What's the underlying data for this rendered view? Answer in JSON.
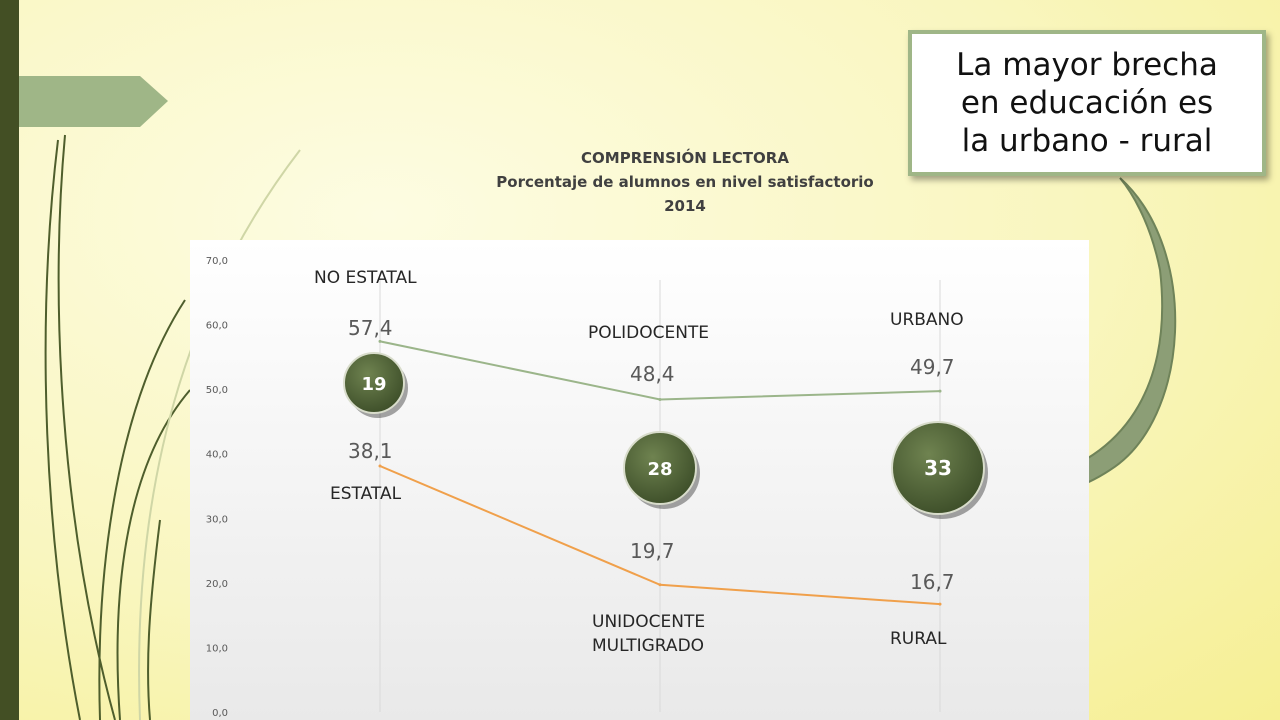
{
  "slide": {
    "callout_text": "La mayor brecha\nen educación es\nla urbano - rural"
  },
  "chart_data": {
    "type": "line",
    "title": "COMPRENSIÓN LECTORA",
    "subtitle": "Porcentaje de alumnos en nivel satisfactorio",
    "year": "2014",
    "categories": [
      "",
      "",
      ""
    ],
    "ylim": [
      0,
      70
    ],
    "y_ticks": [
      "0,0",
      "10,0",
      "20,0",
      "30,0",
      "40,0",
      "50,0",
      "60,0",
      "70,0"
    ],
    "grid": "vertical",
    "series": [
      {
        "color": "#9bb58a",
        "values": [
          57.4,
          48.4,
          49.7
        ],
        "value_labels": [
          "57,4",
          "48,4",
          "49,7"
        ],
        "point_labels": [
          "NO ESTATAL",
          "POLIDOCENTE",
          "URBANO"
        ]
      },
      {
        "color": "#f0a04b",
        "values": [
          38.1,
          19.7,
          16.7
        ],
        "value_labels": [
          "38,1",
          "19,7",
          "16,7"
        ],
        "point_labels": [
          "ESTATAL",
          "UNIDOCENTE\nMULTIGRADO",
          "RURAL"
        ]
      }
    ],
    "gap_badges": [
      "19",
      "28",
      "33"
    ],
    "badge_color": "#4a5d33"
  }
}
